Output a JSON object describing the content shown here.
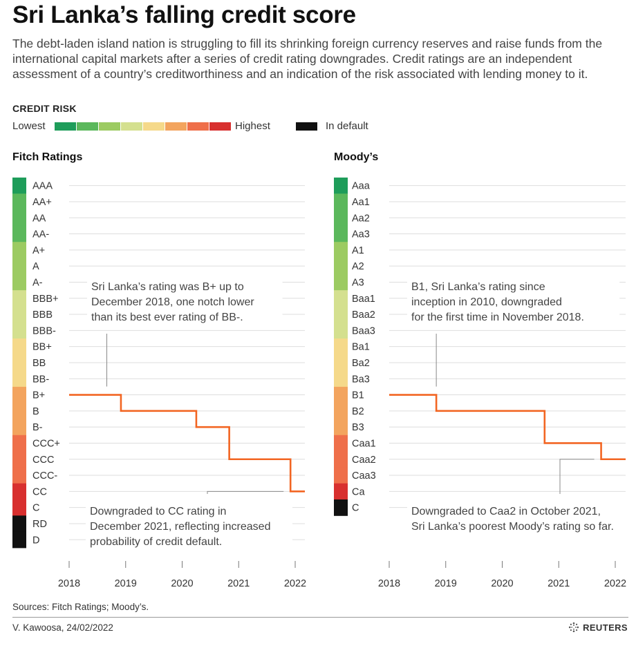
{
  "header": {
    "title": "Sri Lanka’s falling credit score",
    "subtitle": "The debt-laden island nation is struggling to fill its shrinking foreign currency reserves and raise funds from the international capital markets after a series of credit rating downgrades. Credit ratings are an independent assessment of a country’s creditworthiness and an indication of the risk associated with lending money to it."
  },
  "legend": {
    "title": "CREDIT RISK",
    "low_label": "Lowest",
    "high_label": "Highest",
    "default_label": "In default",
    "scale_colors": [
      "#1e9d5a",
      "#5bb85c",
      "#9ccb62",
      "#d4e08f",
      "#f5d98a",
      "#f3a45e",
      "#ef6f4a",
      "#d8302f"
    ],
    "default_color": "#111111"
  },
  "colors": {
    "line": "#f26522",
    "gridline": "#dddddd",
    "annotation_leader": "#888888"
  },
  "chart_data": [
    {
      "type": "line",
      "step": true,
      "title": "Fitch Ratings",
      "x_ticks": [
        "2018",
        "2019",
        "2020",
        "2021",
        "2022"
      ],
      "xlim": [
        "2018-01-01",
        "2022-03-01"
      ],
      "categories": [
        "AAA",
        "AA+",
        "AA",
        "AA-",
        "A+",
        "A",
        "A-",
        "BBB+",
        "BBB",
        "BBB-",
        "BB+",
        "BB",
        "BB-",
        "B+",
        "B",
        "B-",
        "CCC+",
        "CCC",
        "CCC-",
        "CC",
        "C",
        "RD",
        "D"
      ],
      "category_colors": [
        "#1e9d5a",
        "#5bb85c",
        "#5bb85c",
        "#5bb85c",
        "#9ccb62",
        "#9ccb62",
        "#9ccb62",
        "#d4e08f",
        "#d4e08f",
        "#d4e08f",
        "#f5d98a",
        "#f5d98a",
        "#f5d98a",
        "#f3a45e",
        "#f3a45e",
        "#f3a45e",
        "#ef6f4a",
        "#ef6f4a",
        "#ef6f4a",
        "#d8302f",
        "#d8302f",
        "#111111",
        "#111111"
      ],
      "series": [
        {
          "points": [
            {
              "date": "2018-01-01",
              "rating": "B+"
            },
            {
              "date": "2018-12-01",
              "rating": "B"
            },
            {
              "date": "2020-04-01",
              "rating": "B-"
            },
            {
              "date": "2020-11-01",
              "rating": "CCC"
            },
            {
              "date": "2021-12-01",
              "rating": "CC"
            },
            {
              "date": "2022-02-24",
              "rating": "CC"
            }
          ]
        }
      ],
      "annotations": [
        {
          "lines": [
            "Sri Lanka’s rating was B+ up to",
            "December 2018, one notch lower",
            "than its best ever rating of BB-."
          ],
          "date": "2018-09-01",
          "rating": "B+"
        },
        {
          "lines": [
            "Downgraded to CC rating in",
            "December 2021, reflecting increased",
            "probability of credit default."
          ],
          "date": "2021-12-01",
          "rating": "CC"
        }
      ]
    },
    {
      "type": "line",
      "step": true,
      "title": "Moody’s",
      "x_ticks": [
        "2018",
        "2019",
        "2020",
        "2021",
        "2022"
      ],
      "xlim": [
        "2018-01-01",
        "2022-03-01"
      ],
      "categories": [
        "Aaa",
        "Aa1",
        "Aa2",
        "Aa3",
        "A1",
        "A2",
        "A3",
        "Baa1",
        "Baa2",
        "Baa3",
        "Ba1",
        "Ba2",
        "Ba3",
        "B1",
        "B2",
        "B3",
        "Caa1",
        "Caa2",
        "Caa3",
        "Ca",
        "C"
      ],
      "category_colors": [
        "#1e9d5a",
        "#5bb85c",
        "#5bb85c",
        "#5bb85c",
        "#9ccb62",
        "#9ccb62",
        "#9ccb62",
        "#d4e08f",
        "#d4e08f",
        "#d4e08f",
        "#f5d98a",
        "#f5d98a",
        "#f5d98a",
        "#f3a45e",
        "#f3a45e",
        "#f3a45e",
        "#ef6f4a",
        "#ef6f4a",
        "#ef6f4a",
        "#d8302f",
        "#111111"
      ],
      "series": [
        {
          "points": [
            {
              "date": "2018-01-01",
              "rating": "B1"
            },
            {
              "date": "2018-11-01",
              "rating": "B2"
            },
            {
              "date": "2020-10-01",
              "rating": "Caa1"
            },
            {
              "date": "2021-10-01",
              "rating": "Caa2"
            },
            {
              "date": "2022-02-24",
              "rating": "Caa2"
            }
          ]
        }
      ],
      "annotations": [
        {
          "lines": [
            "B1, Sri Lanka’s rating since",
            "inception in 2010, downgraded",
            "for the first time in November 2018."
          ],
          "date": "2018-11-01",
          "rating": "B1"
        },
        {
          "lines": [
            "Downgraded to Caa2 in October 2021,",
            "Sri Lanka’s poorest Moody’s rating so far."
          ],
          "date": "2021-10-01",
          "rating": "Caa2"
        }
      ]
    }
  ],
  "footer": {
    "sources": "Sources: Fitch Ratings; Moody’s.",
    "byline": "V. Kawoosa, 24/02/2022",
    "brand": "REUTERS"
  }
}
